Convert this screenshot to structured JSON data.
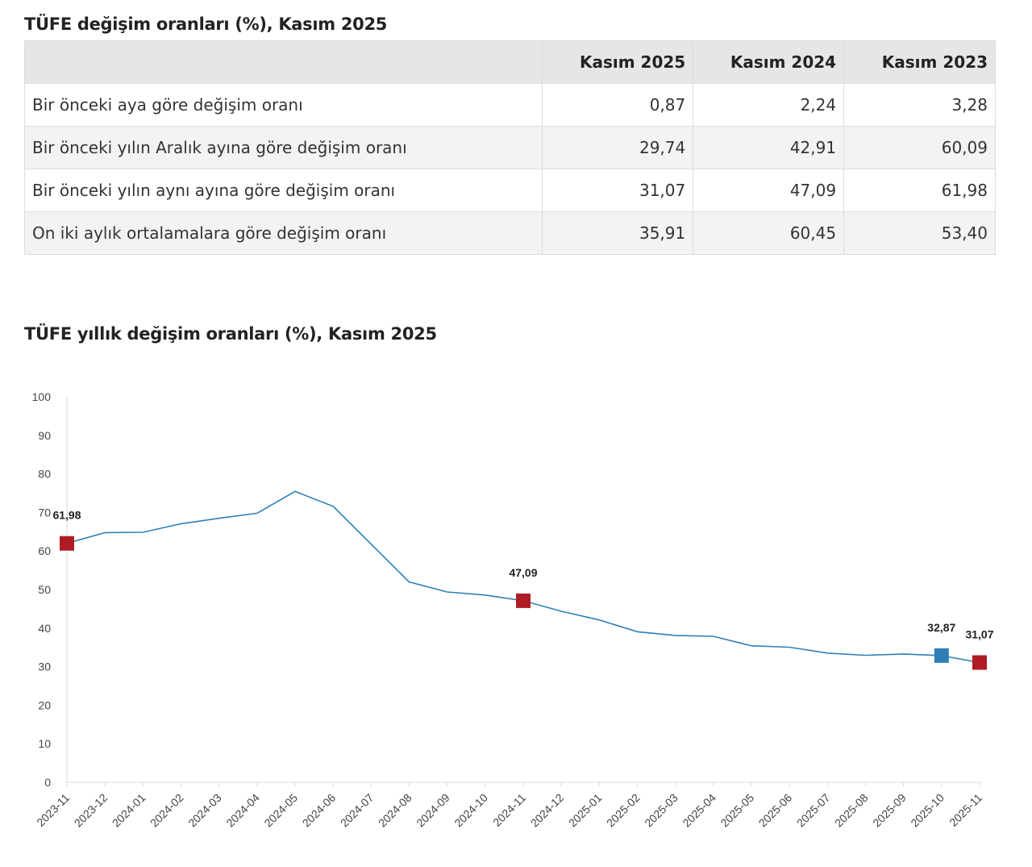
{
  "table": {
    "title": "TÜFE değişim oranları (%), Kasım 2025",
    "headers": [
      "",
      "Kasım 2025",
      "Kasım 2024",
      "Kasım 2023"
    ],
    "rows": [
      {
        "label": "Bir önceki aya göre değişim oranı",
        "values": [
          "0,87",
          "2,24",
          "3,28"
        ]
      },
      {
        "label": "Bir önceki yılın Aralık ayına göre değişim oranı",
        "values": [
          "29,74",
          "42,91",
          "60,09"
        ]
      },
      {
        "label": "Bir önceki yılın aynı ayına göre değişim oranı",
        "values": [
          "31,07",
          "47,09",
          "61,98"
        ]
      },
      {
        "label": "On iki aylık ortalamalara göre değişim oranı",
        "values": [
          "35,91",
          "60,45",
          "53,40"
        ]
      }
    ]
  },
  "chart": {
    "title": "TÜFE yıllık değişim oranları (%), Kasım 2025"
  },
  "chart_data": {
    "type": "line",
    "title": "TÜFE yıllık değişim oranları (%), Kasım 2025",
    "xlabel": "",
    "ylabel": "",
    "ylim": [
      0,
      100
    ],
    "yticks": [
      0,
      10,
      20,
      30,
      40,
      50,
      60,
      70,
      80,
      90,
      100
    ],
    "grid": false,
    "categories": [
      "2023-11",
      "2023-12",
      "2024-01",
      "2024-02",
      "2024-03",
      "2024-04",
      "2024-05",
      "2024-06",
      "2024-07",
      "2024-08",
      "2024-09",
      "2024-10",
      "2024-11",
      "2024-12",
      "2025-01",
      "2025-02",
      "2025-03",
      "2025-04",
      "2025-05",
      "2025-06",
      "2025-07",
      "2025-08",
      "2025-09",
      "2025-10",
      "2025-11"
    ],
    "series": [
      {
        "values": [
          61.98,
          64.77,
          64.86,
          67.07,
          68.5,
          69.8,
          75.45,
          71.6,
          61.78,
          51.97,
          49.38,
          48.58,
          47.09,
          44.38,
          42.12,
          39.05,
          38.1,
          37.86,
          35.41,
          35.05,
          33.52,
          32.95,
          33.29,
          32.87,
          31.07
        ],
        "color": "#2e7fb8"
      }
    ],
    "markers": [
      {
        "index": 0,
        "label": "61,98",
        "color": "#b01c23"
      },
      {
        "index": 12,
        "label": "47,09",
        "color": "#b01c23"
      },
      {
        "index": 23,
        "label": "32,87",
        "color": "#2e7fb8"
      },
      {
        "index": 24,
        "label": "31,07",
        "color": "#b01c23"
      }
    ]
  }
}
